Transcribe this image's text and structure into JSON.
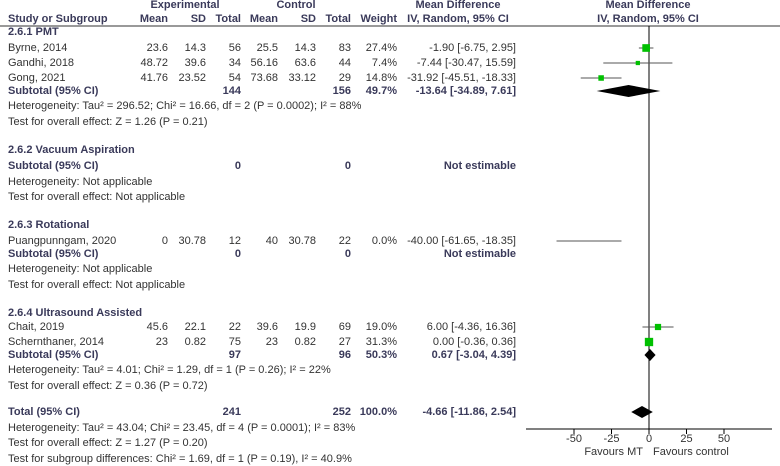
{
  "chart_data": {
    "type": "forest",
    "headers": {
      "group_experimental": "Experimental",
      "group_control": "Control",
      "study": "Study or Subgroup",
      "mean": "Mean",
      "sd": "SD",
      "total": "Total",
      "weight": "Weight",
      "md_title": "Mean Difference",
      "md_method": "IV, Random, 95% CI",
      "plot_title": "Mean Difference",
      "plot_method": "IV, Random, 95% CI"
    },
    "subgroups": [
      {
        "title": "2.6.1 PMT",
        "studies": [
          {
            "name": "Byrne, 2014",
            "exp_mean": "23.6",
            "exp_sd": "14.3",
            "exp_total": "56",
            "ctl_mean": "25.5",
            "ctl_sd": "14.3",
            "ctl_total": "83",
            "weight": "27.4%",
            "md_ci": "-1.90 [-6.75, 2.95]",
            "md": -1.9,
            "lo": -6.75,
            "hi": 2.95,
            "w": 27.4
          },
          {
            "name": "Gandhi, 2018",
            "exp_mean": "48.72",
            "exp_sd": "39.6",
            "exp_total": "34",
            "ctl_mean": "56.16",
            "ctl_sd": "63.6",
            "ctl_total": "44",
            "weight": "7.4%",
            "md_ci": "-7.44 [-30.47, 15.59]",
            "md": -7.44,
            "lo": -30.47,
            "hi": 15.59,
            "w": 7.4
          },
          {
            "name": "Gong, 2021",
            "exp_mean": "41.76",
            "exp_sd": "23.52",
            "exp_total": "54",
            "ctl_mean": "73.68",
            "ctl_sd": "33.12",
            "ctl_total": "29",
            "weight": "14.8%",
            "md_ci": "-31.92 [-45.51, -18.33]",
            "md": -31.92,
            "lo": -45.51,
            "hi": -18.33,
            "w": 14.8
          }
        ],
        "subtotal": {
          "label": "Subtotal (95% CI)",
          "exp_total": "144",
          "ctl_total": "156",
          "weight": "49.7%",
          "md_ci": "-13.64 [-34.89, 7.61]",
          "md": -13.64,
          "lo": -34.89,
          "hi": 7.61
        },
        "heterogeneity": "Heterogeneity: Tau² = 296.52; Chi² = 16.66, df = 2 (P = 0.0002); I² = 88%",
        "overall_effect": "Test for overall effect: Z = 1.26 (P = 0.21)"
      },
      {
        "title": "2.6.2 Vacuum Aspiration",
        "studies": [],
        "subtotal": {
          "label": "Subtotal (95% CI)",
          "exp_total": "0",
          "ctl_total": "0",
          "weight": "",
          "md_ci": "Not estimable"
        },
        "heterogeneity": "Heterogeneity: Not applicable",
        "overall_effect": "Test for overall effect: Not applicable"
      },
      {
        "title": "2.6.3 Rotational",
        "studies": [
          {
            "name": "Puangpunngam, 2020",
            "exp_mean": "0",
            "exp_sd": "30.78",
            "exp_total": "12",
            "ctl_mean": "40",
            "ctl_sd": "30.78",
            "ctl_total": "22",
            "weight": "0.0%",
            "md_ci": "-40.00 [-61.65, -18.35]",
            "md": -40.0,
            "lo": -61.65,
            "hi": -18.35,
            "w": 0
          }
        ],
        "subtotal": {
          "label": "Subtotal (95% CI)",
          "exp_total": "0",
          "ctl_total": "0",
          "weight": "",
          "md_ci": "Not estimable"
        },
        "heterogeneity": "Heterogeneity: Not applicable",
        "overall_effect": "Test for overall effect: Not applicable"
      },
      {
        "title": "2.6.4 Ultrasound Assisted",
        "studies": [
          {
            "name": "Chait, 2019",
            "exp_mean": "45.6",
            "exp_sd": "22.1",
            "exp_total": "22",
            "ctl_mean": "39.6",
            "ctl_sd": "19.9",
            "ctl_total": "69",
            "weight": "19.0%",
            "md_ci": "6.00 [-4.36, 16.36]",
            "md": 6.0,
            "lo": -4.36,
            "hi": 16.36,
            "w": 19.0
          },
          {
            "name": "Schernthaner, 2014",
            "exp_mean": "23",
            "exp_sd": "0.82",
            "exp_total": "75",
            "ctl_mean": "23",
            "ctl_sd": "0.82",
            "ctl_total": "27",
            "weight": "31.3%",
            "md_ci": "0.00 [-0.36, 0.36]",
            "md": 0.0,
            "lo": -0.36,
            "hi": 0.36,
            "w": 31.3
          }
        ],
        "subtotal": {
          "label": "Subtotal (95% CI)",
          "exp_total": "97",
          "ctl_total": "96",
          "weight": "50.3%",
          "md_ci": "0.67 [-3.04, 4.39]",
          "md": 0.67,
          "lo": -3.04,
          "hi": 4.39
        },
        "heterogeneity": "Heterogeneity: Tau² = 4.01; Chi² = 1.29, df = 1 (P = 0.26); I² = 22%",
        "overall_effect": "Test for overall effect: Z = 0.36 (P = 0.72)"
      }
    ],
    "total": {
      "label": "Total (95% CI)",
      "exp_total": "241",
      "ctl_total": "252",
      "weight": "100.0%",
      "md_ci": "-4.66 [-11.86, 2.54]",
      "md": -4.66,
      "lo": -11.86,
      "hi": 2.54,
      "heterogeneity": "Heterogeneity: Tau² = 43.04; Chi² = 23.45, df = 4 (P = 0.0001); I² = 83%",
      "overall_effect": "Test for overall effect: Z = 1.27 (P = 0.20)",
      "subgroup_differences": "Test for subgroup differences: Chi² = 1.69, df = 1 (P = 0.19), I² = 40.9%"
    },
    "x_axis": {
      "ticks": [
        -50,
        -25,
        0,
        25,
        50
      ],
      "range": [
        -82,
        82
      ],
      "left_label": "Favours MT",
      "right_label": "Favours control"
    },
    "colors": {
      "marker": "#00c000",
      "diamond": "#000000",
      "ci_line": "#555555"
    }
  }
}
